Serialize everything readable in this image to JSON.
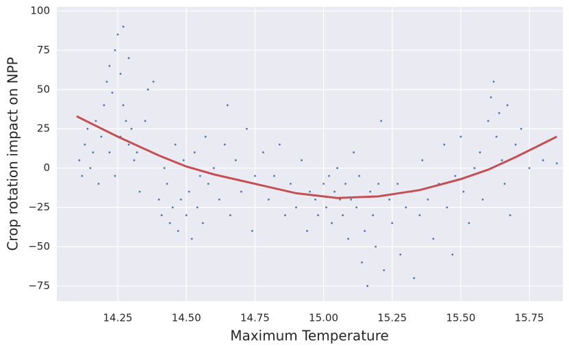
{
  "chart_data": {
    "type": "scatter",
    "xlabel": "Maximum Temperature",
    "ylabel": "Crop rotation impact on NPP",
    "xlim": [
      14.028,
      15.872
    ],
    "ylim": [
      -84.6,
      102.6
    ],
    "xticks": [
      14.25,
      14.5,
      14.75,
      15,
      15.25,
      15.5,
      15.75
    ],
    "xtick_labels": [
      "14.25",
      "14.50",
      "14.75",
      "15.00",
      "15.25",
      "15.50",
      "15.75"
    ],
    "yticks": [
      {
        "value": -75,
        "label": "−75"
      },
      {
        "value": -50,
        "label": "−50"
      },
      {
        "value": -25,
        "label": "−25"
      },
      0,
      25,
      50,
      75,
      100
    ],
    "grid": true,
    "background": "#eaeaf2",
    "series": [
      {
        "type": "scatter",
        "color": "#4c72b0",
        "x": [
          14.11,
          14.12,
          14.13,
          14.14,
          14.15,
          14.16,
          14.17,
          14.18,
          14.19,
          14.2,
          14.21,
          14.22,
          14.23,
          14.24,
          14.25,
          14.26,
          14.27,
          14.22,
          14.24,
          14.26,
          14.28,
          14.29,
          14.3,
          14.31,
          14.27,
          14.29,
          14.32,
          14.33,
          14.35,
          14.36,
          14.38,
          14.4,
          14.41,
          14.42,
          14.43,
          14.44,
          14.45,
          14.46,
          14.47,
          14.48,
          14.49,
          14.5,
          14.51,
          14.52,
          14.53,
          14.54,
          14.55,
          14.56,
          14.57,
          14.58,
          14.6,
          14.62,
          14.64,
          14.65,
          14.66,
          14.68,
          14.7,
          14.72,
          14.74,
          14.75,
          14.78,
          14.8,
          14.82,
          14.84,
          14.86,
          14.88,
          14.9,
          14.92,
          14.94,
          14.95,
          14.97,
          14.98,
          15.0,
          15.01,
          15.02,
          15.03,
          15.04,
          15.05,
          15.06,
          15.07,
          15.08,
          15.09,
          15.1,
          15.11,
          15.12,
          15.13,
          15.14,
          15.15,
          15.16,
          15.17,
          15.18,
          15.19,
          15.2,
          15.21,
          15.22,
          15.24,
          15.25,
          15.27,
          15.28,
          15.3,
          15.32,
          15.33,
          15.35,
          15.36,
          15.38,
          15.4,
          15.42,
          15.44,
          15.45,
          15.47,
          15.48,
          15.5,
          15.51,
          15.53,
          15.55,
          15.57,
          15.58,
          15.6,
          15.61,
          15.62,
          15.63,
          15.64,
          15.65,
          15.66,
          15.67,
          15.68,
          15.7,
          15.72,
          15.75,
          15.8,
          15.85
        ],
        "y": [
          5,
          -5,
          15,
          25,
          0,
          10,
          30,
          -10,
          20,
          40,
          55,
          65,
          48,
          75,
          85,
          60,
          90,
          10,
          -5,
          20,
          30,
          15,
          25,
          5,
          40,
          70,
          10,
          -15,
          30,
          50,
          55,
          -20,
          -30,
          0,
          -10,
          -35,
          -25,
          15,
          -40,
          -20,
          5,
          -30,
          -15,
          -45,
          10,
          -25,
          -5,
          -35,
          20,
          -10,
          0,
          -20,
          15,
          40,
          -30,
          5,
          -15,
          25,
          -40,
          -5,
          10,
          -20,
          -5,
          15,
          -30,
          -10,
          -25,
          5,
          -40,
          -15,
          -20,
          -30,
          -10,
          -25,
          -5,
          -35,
          -15,
          0,
          -20,
          -30,
          -10,
          -45,
          -20,
          10,
          -25,
          -5,
          -60,
          -40,
          -75,
          -15,
          -30,
          -50,
          -10,
          30,
          -65,
          -20,
          -35,
          -10,
          -55,
          -25,
          -15,
          -70,
          -30,
          5,
          -20,
          -45,
          -10,
          15,
          -25,
          -55,
          -5,
          20,
          -15,
          -35,
          0,
          10,
          -20,
          30,
          45,
          55,
          20,
          35,
          5,
          -10,
          40,
          -30,
          15,
          25,
          0,
          5,
          3
        ]
      },
      {
        "type": "line",
        "color": "#c44e52",
        "x": [
          14.1,
          14.25,
          14.4,
          14.5,
          14.6,
          14.75,
          14.9,
          15.05,
          15.2,
          15.35,
          15.5,
          15.6,
          15.7,
          15.85
        ],
        "y": [
          33,
          20,
          8,
          1,
          -4,
          -10,
          -16,
          -19,
          -18,
          -14,
          -7,
          -1,
          7,
          20
        ]
      }
    ]
  }
}
